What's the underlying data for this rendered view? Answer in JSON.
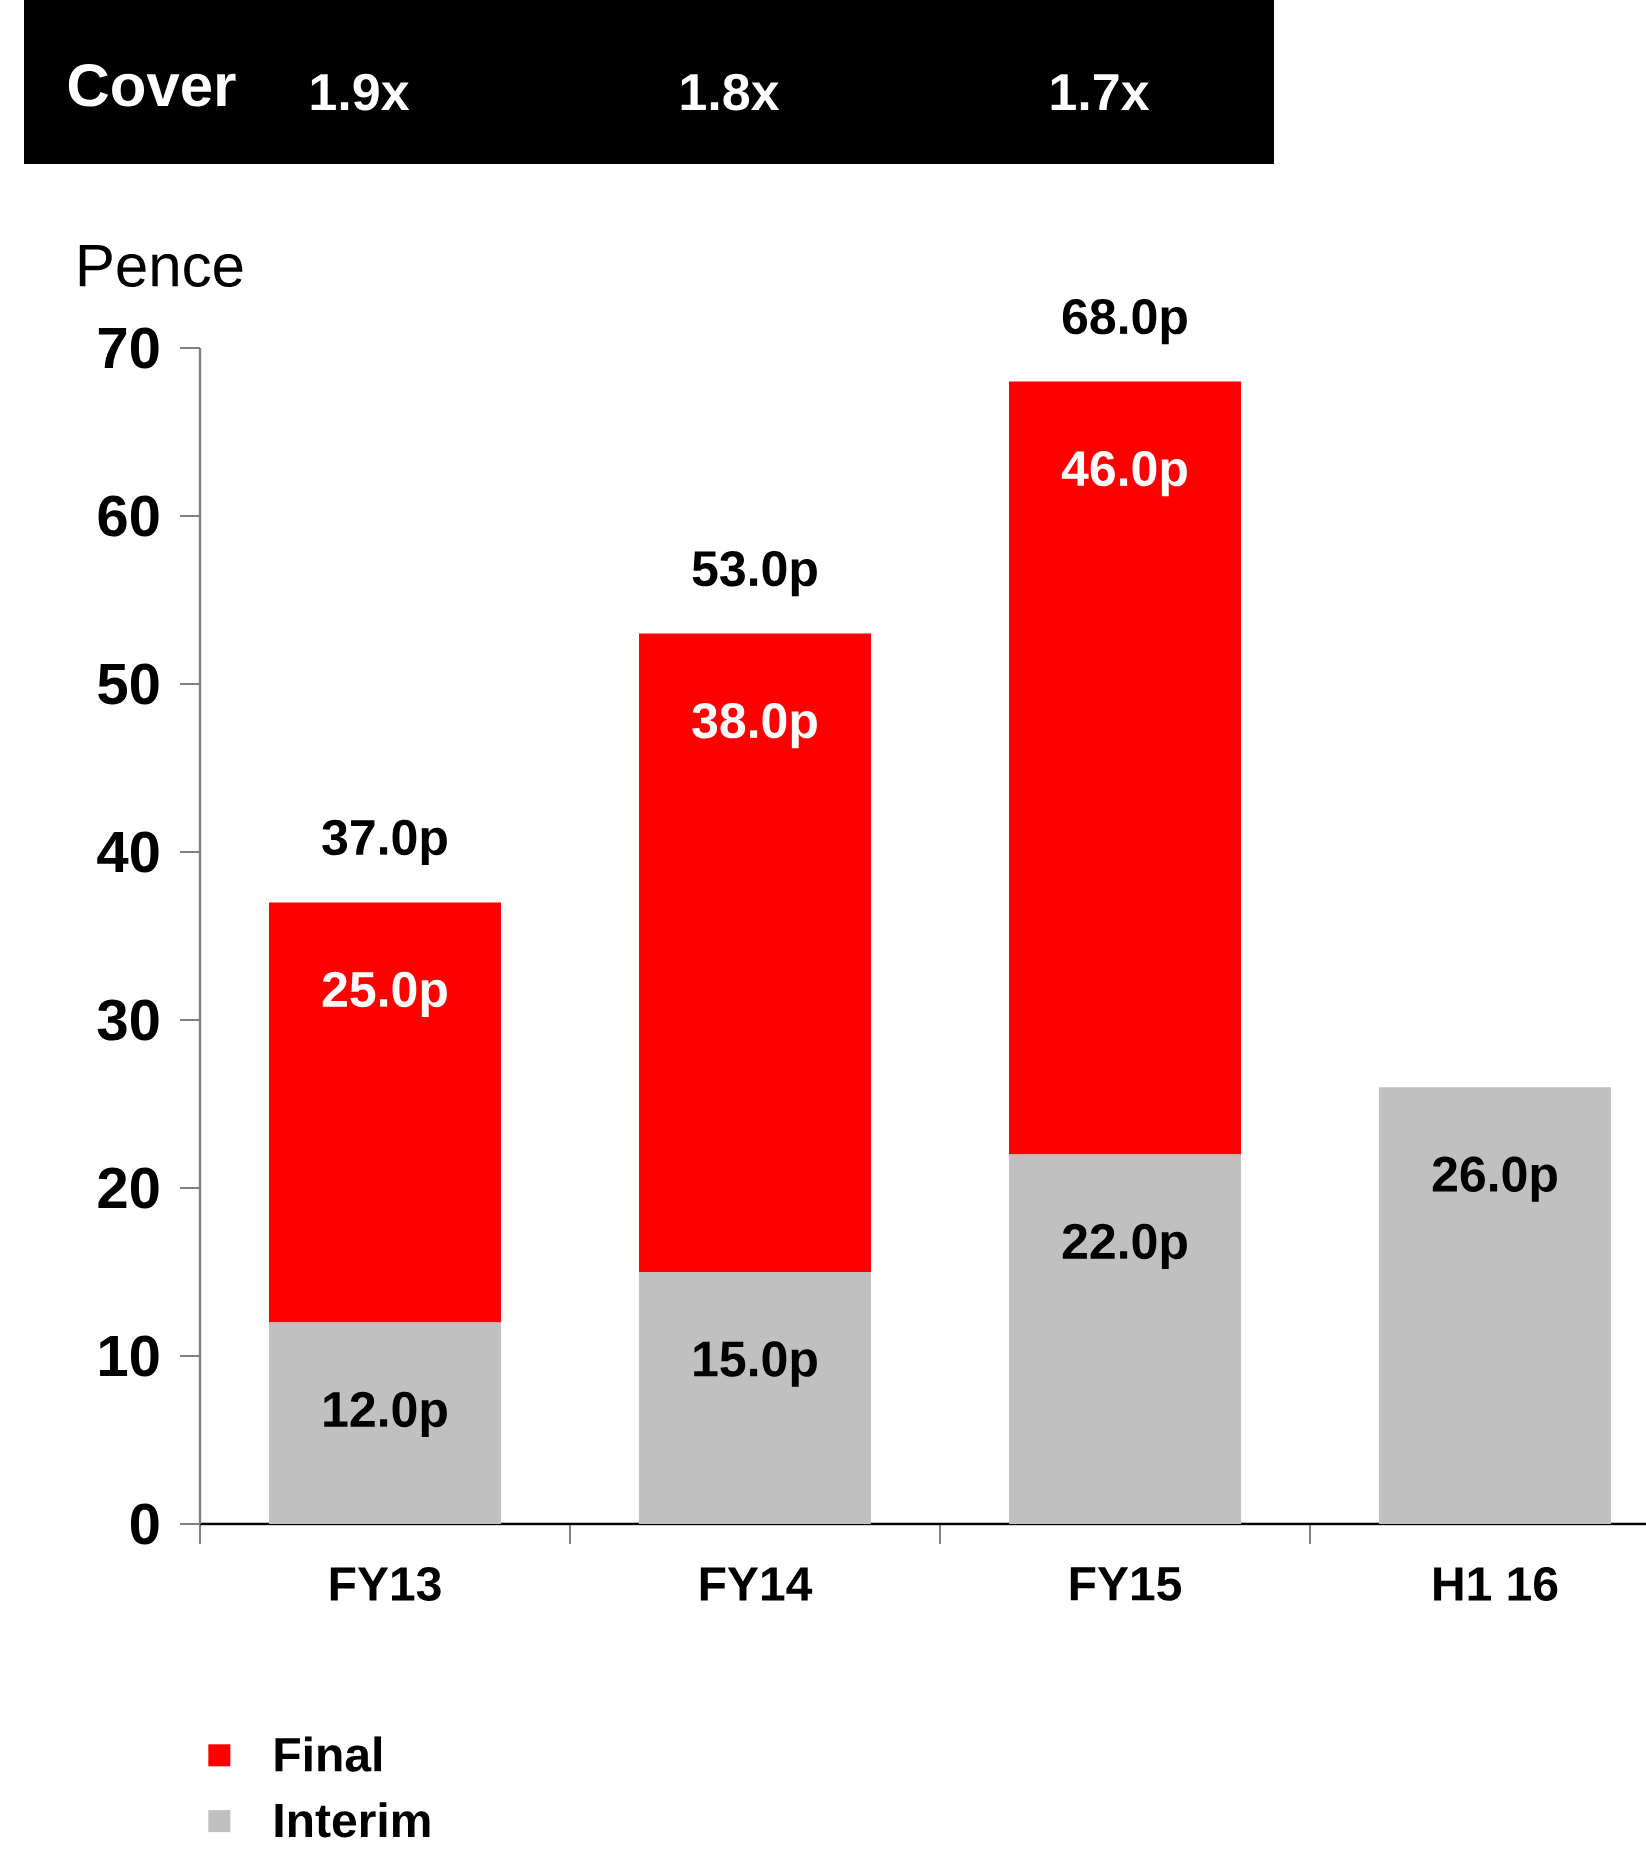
{
  "chart_data": {
    "type": "bar",
    "stacked": true,
    "ylabel": "Pence",
    "categories": [
      "FY13",
      "FY14",
      "FY15",
      "H1 16"
    ],
    "series": [
      {
        "name": "Interim",
        "color": "#c0c0c0",
        "values": [
          12,
          15,
          22,
          26
        ],
        "value_labels": [
          "12.0p",
          "15.0p",
          "22.0p",
          "26.0p"
        ]
      },
      {
        "name": "Final",
        "color": "#ff0000",
        "values": [
          25,
          38,
          46,
          null
        ],
        "value_labels": [
          "25.0p",
          "38.0p",
          "46.0p",
          null
        ]
      }
    ],
    "totals": [
      "37.0p",
      "53.0p",
      "68.0p",
      null
    ],
    "ylim": [
      0,
      70
    ],
    "yticks": [
      0,
      10,
      20,
      30,
      40,
      50,
      60,
      70
    ],
    "legend": "bottom left",
    "annotations": [
      "Cover",
      "1.9x",
      "1.8x",
      "1.7x"
    ]
  }
}
